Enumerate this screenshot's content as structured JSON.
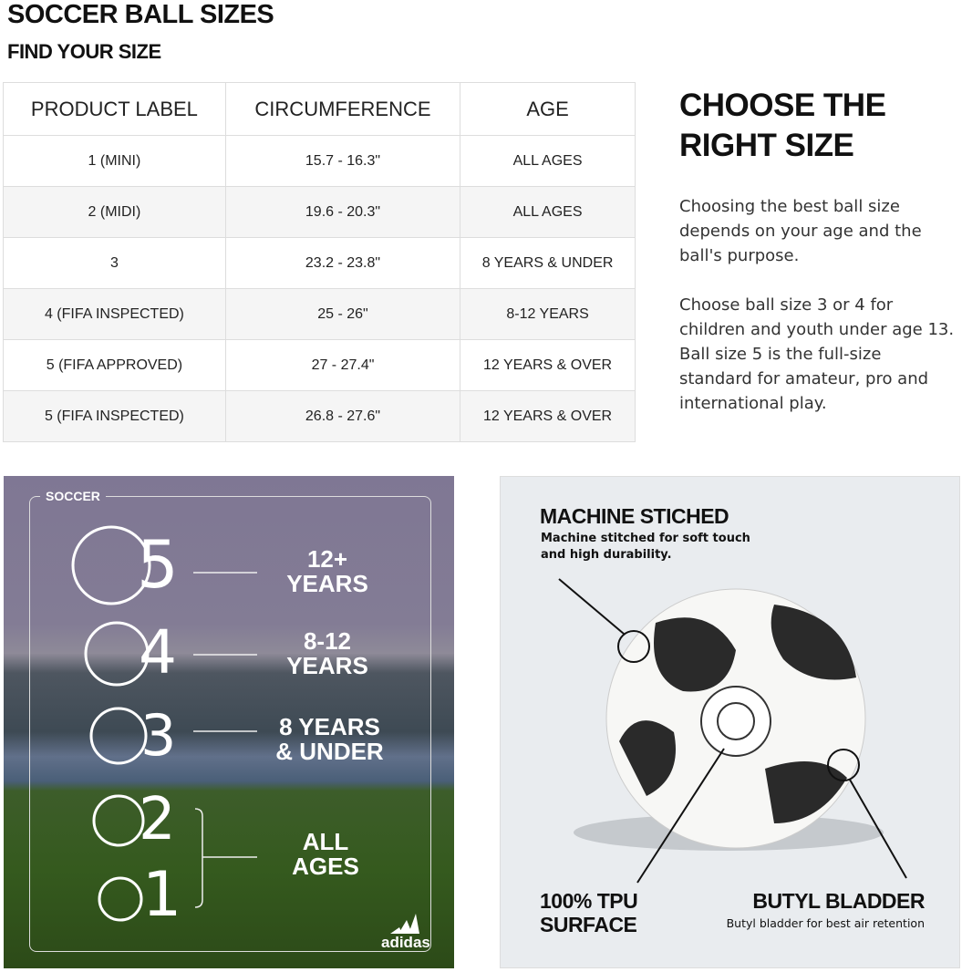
{
  "title": "SOCCER BALL SIZES",
  "subtitle": "FIND YOUR SIZE",
  "table": {
    "headers": [
      "PRODUCT LABEL",
      "CIRCUMFERENCE",
      "AGE"
    ],
    "rows": [
      [
        "1 (MINI)",
        "15.7 - 16.3\"",
        "ALL AGES"
      ],
      [
        "2 (MIDI)",
        "19.6 - 20.3\"",
        "ALL AGES"
      ],
      [
        "3",
        "23.2 - 23.8\"",
        "8 YEARS & UNDER"
      ],
      [
        "4 (FIFA INSPECTED)",
        "25 - 26\"",
        "8-12 YEARS"
      ],
      [
        "5 (FIFA APPROVED)",
        "27 - 27.4\"",
        "12 YEARS & OVER"
      ],
      [
        "5 (FIFA INSPECTED)",
        "26.8 - 27.6\"",
        "12 YEARS & OVER"
      ]
    ]
  },
  "side": {
    "heading": "CHOOSE THE RIGHT SIZE",
    "p1": "Choosing the best ball size depends on your age and the ball's purpose.",
    "p2": "Choose ball size 3 or 4 for children and youth under age 13. Ball size 5 is the full-size standard for amateur, pro and international play."
  },
  "infographic": {
    "label": "SOCCER",
    "sizes": [
      {
        "num": "5",
        "l1": "12+",
        "l2": "YEARS"
      },
      {
        "num": "4",
        "l1": "8-12",
        "l2": "YEARS"
      },
      {
        "num": "3",
        "l1": "8 YEARS",
        "l2": "& UNDER"
      },
      {
        "num": "2"
      },
      {
        "num": "1"
      }
    ],
    "all1": "ALL",
    "all2": "AGES",
    "logo": "adidas"
  },
  "features": {
    "f1_title": "MACHINE STICHED",
    "f1_desc": "Machine stitched for soft touch and high durability.",
    "f2_title1": "100% TPU",
    "f2_title2": "SURFACE",
    "f3_title": "BUTYL BLADDER",
    "f3_desc": "Butyl bladder for best air retention"
  }
}
